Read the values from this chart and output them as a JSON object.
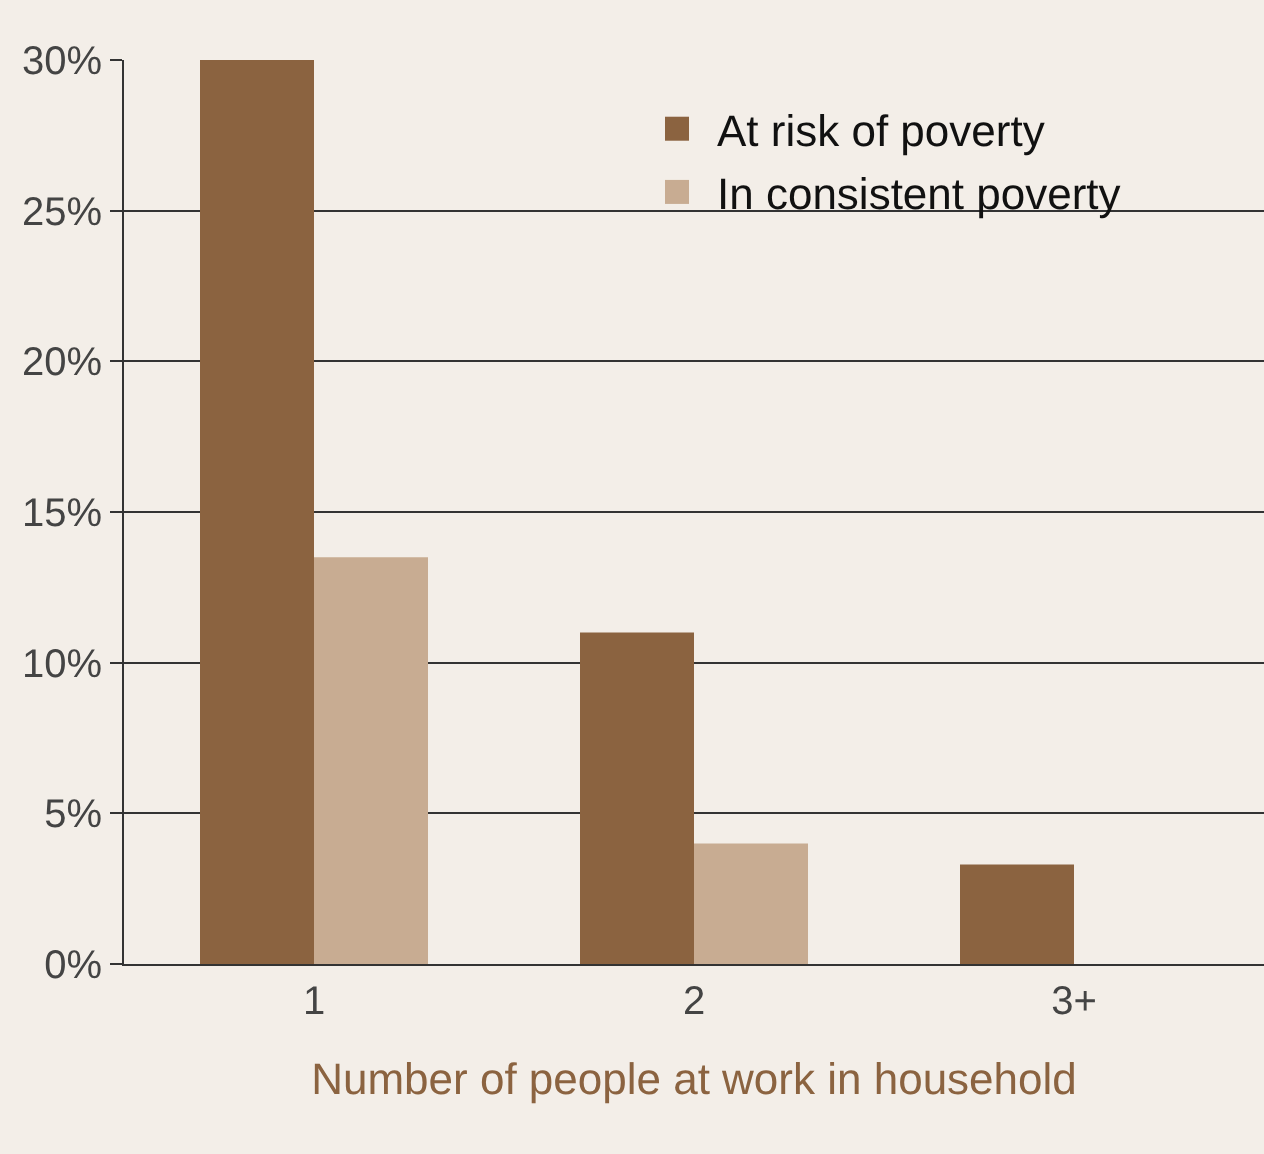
{
  "chart_data": {
    "type": "bar",
    "xlabel": "Number of people at work in household",
    "categories": [
      "1",
      "2",
      "3+"
    ],
    "series": [
      {
        "name": "At risk of poverty",
        "color": "#8b6340",
        "values": [
          30,
          11,
          3.3
        ]
      },
      {
        "name": "In consistent poverty",
        "color": "#c8ac92",
        "values": [
          13.5,
          4,
          null
        ]
      }
    ],
    "ylim": [
      0,
      30
    ],
    "yticks": [
      {
        "value": 0,
        "label": "0%"
      },
      {
        "value": 5,
        "label": "5%"
      },
      {
        "value": 10,
        "label": "10%"
      },
      {
        "value": 15,
        "label": "15%"
      },
      {
        "value": 20,
        "label": "20%"
      },
      {
        "value": 25,
        "label": "25%"
      },
      {
        "value": 30,
        "label": "30%"
      }
    ],
    "grid": "y",
    "legend": "top right"
  }
}
